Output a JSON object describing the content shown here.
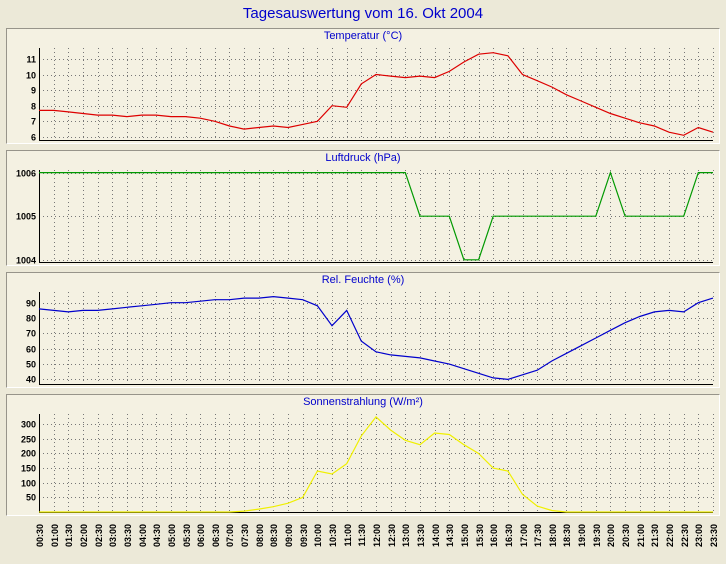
{
  "title": "Tagesauswertung vom 16. Okt 2004",
  "colors": {
    "page_bg": "#ece9d8",
    "panel_bg": "#f4f1e2",
    "title_blue": "#0000cc",
    "grid": "#777777",
    "axis": "#000000",
    "temperature_line": "#dd0000",
    "pressure_line": "#009900",
    "humidity_line": "#0000cc",
    "radiation_line": "#f0f000"
  },
  "time_labels": [
    "00:30",
    "01:00",
    "01:30",
    "02:00",
    "02:30",
    "03:00",
    "03:30",
    "04:00",
    "04:30",
    "05:00",
    "05:30",
    "06:00",
    "06:30",
    "07:00",
    "07:30",
    "08:00",
    "08:30",
    "09:00",
    "09:30",
    "10:00",
    "10:30",
    "11:00",
    "11:30",
    "12:00",
    "12:30",
    "13:00",
    "13:30",
    "14:00",
    "14:30",
    "15:00",
    "15:30",
    "16:00",
    "16:30",
    "17:00",
    "17:30",
    "18:00",
    "18:30",
    "19:00",
    "19:30",
    "20:00",
    "20:30",
    "21:00",
    "21:30",
    "22:00",
    "22:30",
    "23:00",
    "23:30"
  ],
  "chart_data": [
    {
      "type": "line",
      "title": "Temperatur (°C)",
      "color": "#dd0000",
      "categories": "shared:time_labels",
      "yticks": [
        6,
        7,
        8,
        9,
        10,
        11
      ],
      "ylim": [
        5.8,
        11.7
      ],
      "values": [
        7.7,
        7.7,
        7.6,
        7.5,
        7.4,
        7.4,
        7.3,
        7.4,
        7.4,
        7.3,
        7.3,
        7.2,
        7.0,
        6.7,
        6.5,
        6.6,
        6.7,
        6.6,
        6.8,
        7.0,
        8.0,
        7.9,
        9.4,
        10.0,
        9.9,
        9.8,
        9.9,
        9.8,
        10.2,
        10.8,
        11.3,
        11.4,
        11.2,
        10.0,
        9.6,
        9.2,
        8.7,
        8.3,
        7.9,
        7.5,
        7.2,
        6.9,
        6.7,
        6.3,
        6.1,
        6.6,
        6.3
      ]
    },
    {
      "type": "line",
      "title": "Luftdruck (hPa)",
      "color": "#009900",
      "categories": "shared:time_labels",
      "yticks": [
        1004,
        1005,
        1006
      ],
      "ylim": [
        1003.95,
        1006.06
      ],
      "values": [
        1006,
        1006,
        1006,
        1006,
        1006,
        1006,
        1006,
        1006,
        1006,
        1006,
        1006,
        1006,
        1006,
        1006,
        1006,
        1006,
        1006,
        1006,
        1006,
        1006,
        1006,
        1006,
        1006,
        1006,
        1006,
        1006,
        1005,
        1005,
        1005,
        1004,
        1004,
        1005,
        1005,
        1005,
        1005,
        1005,
        1005,
        1005,
        1005,
        1006,
        1005,
        1005,
        1005,
        1005,
        1005,
        1006,
        1006
      ]
    },
    {
      "type": "line",
      "title": "Rel. Feuchte (%)",
      "color": "#0000cc",
      "categories": "shared:time_labels",
      "yticks": [
        40,
        50,
        60,
        70,
        80,
        90
      ],
      "ylim": [
        37,
        97
      ],
      "values": [
        86,
        85,
        84,
        85,
        85,
        86,
        87,
        88,
        89,
        90,
        90,
        91,
        92,
        92,
        93,
        93,
        94,
        93,
        92,
        88,
        75,
        85,
        65,
        58,
        56,
        55,
        54,
        52,
        50,
        47,
        44,
        41,
        40,
        43,
        46,
        52,
        57,
        62,
        67,
        72,
        77,
        81,
        84,
        85,
        84,
        90,
        93
      ]
    },
    {
      "type": "line",
      "title": "Sonnenstrahlung (W/m²)",
      "color": "#f0f000",
      "categories": "shared:time_labels",
      "yticks": [
        50,
        100,
        150,
        200,
        250,
        300
      ],
      "ylim": [
        0,
        335
      ],
      "values": [
        0,
        0,
        0,
        0,
        0,
        0,
        0,
        0,
        0,
        0,
        0,
        0,
        0,
        0,
        3,
        10,
        18,
        30,
        50,
        140,
        130,
        165,
        260,
        325,
        280,
        245,
        230,
        270,
        265,
        230,
        200,
        150,
        140,
        60,
        20,
        5,
        0,
        0,
        0,
        0,
        0,
        0,
        0,
        0,
        0,
        0,
        0
      ]
    }
  ]
}
